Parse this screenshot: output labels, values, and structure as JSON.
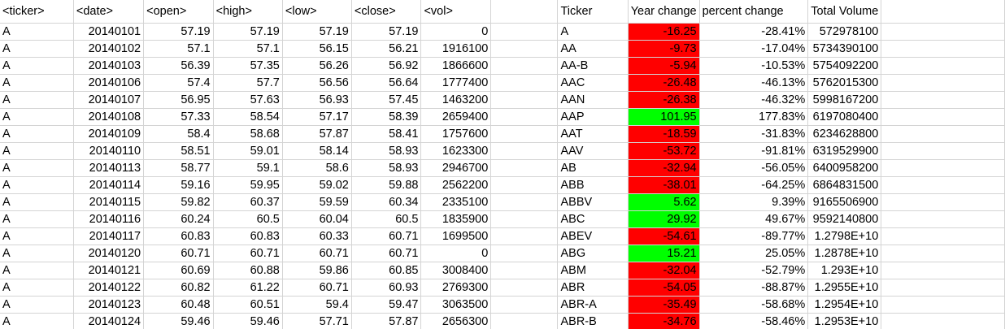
{
  "colors": {
    "negative_fill": "#ff0000",
    "positive_fill": "#00ff00",
    "gridline": "#d4d4d4"
  },
  "headers": {
    "ticker": "<ticker>",
    "date": "<date>",
    "open": "<open>",
    "high": "<high>",
    "low": "<low>",
    "close": "<close>",
    "vol": "<vol>",
    "summary_ticker": "Ticker",
    "year_change": "Year change",
    "percent_change": "percent change",
    "total_volume": "Total Volume"
  },
  "rows": [
    {
      "ticker": "A",
      "date": "20140101",
      "open": "57.19",
      "high": "57.19",
      "low": "57.19",
      "close": "57.19",
      "vol": "0"
    },
    {
      "ticker": "A",
      "date": "20140102",
      "open": "57.1",
      "high": "57.1",
      "low": "56.15",
      "close": "56.21",
      "vol": "1916100"
    },
    {
      "ticker": "A",
      "date": "20140103",
      "open": "56.39",
      "high": "57.35",
      "low": "56.26",
      "close": "56.92",
      "vol": "1866600"
    },
    {
      "ticker": "A",
      "date": "20140106",
      "open": "57.4",
      "high": "57.7",
      "low": "56.56",
      "close": "56.64",
      "vol": "1777400"
    },
    {
      "ticker": "A",
      "date": "20140107",
      "open": "56.95",
      "high": "57.63",
      "low": "56.93",
      "close": "57.45",
      "vol": "1463200"
    },
    {
      "ticker": "A",
      "date": "20140108",
      "open": "57.33",
      "high": "58.54",
      "low": "57.17",
      "close": "58.39",
      "vol": "2659400"
    },
    {
      "ticker": "A",
      "date": "20140109",
      "open": "58.4",
      "high": "58.68",
      "low": "57.87",
      "close": "58.41",
      "vol": "1757600"
    },
    {
      "ticker": "A",
      "date": "20140110",
      "open": "58.51",
      "high": "59.01",
      "low": "58.14",
      "close": "58.93",
      "vol": "1623300"
    },
    {
      "ticker": "A",
      "date": "20140113",
      "open": "58.77",
      "high": "59.1",
      "low": "58.6",
      "close": "58.93",
      "vol": "2946700"
    },
    {
      "ticker": "A",
      "date": "20140114",
      "open": "59.16",
      "high": "59.95",
      "low": "59.02",
      "close": "59.88",
      "vol": "2562200"
    },
    {
      "ticker": "A",
      "date": "20140115",
      "open": "59.82",
      "high": "60.37",
      "low": "59.59",
      "close": "60.34",
      "vol": "2335100"
    },
    {
      "ticker": "A",
      "date": "20140116",
      "open": "60.24",
      "high": "60.5",
      "low": "60.04",
      "close": "60.5",
      "vol": "1835900"
    },
    {
      "ticker": "A",
      "date": "20140117",
      "open": "60.83",
      "high": "60.83",
      "low": "60.33",
      "close": "60.71",
      "vol": "1699500"
    },
    {
      "ticker": "A",
      "date": "20140120",
      "open": "60.71",
      "high": "60.71",
      "low": "60.71",
      "close": "60.71",
      "vol": "0"
    },
    {
      "ticker": "A",
      "date": "20140121",
      "open": "60.69",
      "high": "60.88",
      "low": "59.86",
      "close": "60.85",
      "vol": "3008400"
    },
    {
      "ticker": "A",
      "date": "20140122",
      "open": "60.82",
      "high": "61.22",
      "low": "60.71",
      "close": "60.93",
      "vol": "2769300"
    },
    {
      "ticker": "A",
      "date": "20140123",
      "open": "60.48",
      "high": "60.51",
      "low": "59.4",
      "close": "59.47",
      "vol": "3063500"
    },
    {
      "ticker": "A",
      "date": "20140124",
      "open": "59.46",
      "high": "59.46",
      "low": "57.71",
      "close": "57.87",
      "vol": "2656300"
    }
  ],
  "summary": [
    {
      "ticker": "A",
      "year_change": "-16.25",
      "percent_change": "-28.41%",
      "total_volume": "572978100",
      "status": "negative"
    },
    {
      "ticker": "AA",
      "year_change": "-9.73",
      "percent_change": "-17.04%",
      "total_volume": "5734390100",
      "status": "negative"
    },
    {
      "ticker": "AA-B",
      "year_change": "-5.94",
      "percent_change": "-10.53%",
      "total_volume": "5754092200",
      "status": "negative"
    },
    {
      "ticker": "AAC",
      "year_change": "-26.48",
      "percent_change": "-46.13%",
      "total_volume": "5762015300",
      "status": "negative"
    },
    {
      "ticker": "AAN",
      "year_change": "-26.38",
      "percent_change": "-46.32%",
      "total_volume": "5998167200",
      "status": "negative"
    },
    {
      "ticker": "AAP",
      "year_change": "101.95",
      "percent_change": "177.83%",
      "total_volume": "6197080400",
      "status": "positive"
    },
    {
      "ticker": "AAT",
      "year_change": "-18.59",
      "percent_change": "-31.83%",
      "total_volume": "6234628800",
      "status": "negative"
    },
    {
      "ticker": "AAV",
      "year_change": "-53.72",
      "percent_change": "-91.81%",
      "total_volume": "6319529900",
      "status": "negative"
    },
    {
      "ticker": "AB",
      "year_change": "-32.94",
      "percent_change": "-56.05%",
      "total_volume": "6400958200",
      "status": "negative"
    },
    {
      "ticker": "ABB",
      "year_change": "-38.01",
      "percent_change": "-64.25%",
      "total_volume": "6864831500",
      "status": "negative"
    },
    {
      "ticker": "ABBV",
      "year_change": "5.62",
      "percent_change": "9.39%",
      "total_volume": "9165506900",
      "status": "positive"
    },
    {
      "ticker": "ABC",
      "year_change": "29.92",
      "percent_change": "49.67%",
      "total_volume": "9592140800",
      "status": "positive"
    },
    {
      "ticker": "ABEV",
      "year_change": "-54.61",
      "percent_change": "-89.77%",
      "total_volume": "1.2798E+10",
      "status": "negative"
    },
    {
      "ticker": "ABG",
      "year_change": "15.21",
      "percent_change": "25.05%",
      "total_volume": "1.2878E+10",
      "status": "positive"
    },
    {
      "ticker": "ABM",
      "year_change": "-32.04",
      "percent_change": "-52.79%",
      "total_volume": "1.293E+10",
      "status": "negative"
    },
    {
      "ticker": "ABR",
      "year_change": "-54.05",
      "percent_change": "-88.87%",
      "total_volume": "1.2955E+10",
      "status": "negative"
    },
    {
      "ticker": "ABR-A",
      "year_change": "-35.49",
      "percent_change": "-58.68%",
      "total_volume": "1.2954E+10",
      "status": "negative"
    },
    {
      "ticker": "ABR-B",
      "year_change": "-34.76",
      "percent_change": "-58.46%",
      "total_volume": "1.2953E+10",
      "status": "negative"
    }
  ]
}
